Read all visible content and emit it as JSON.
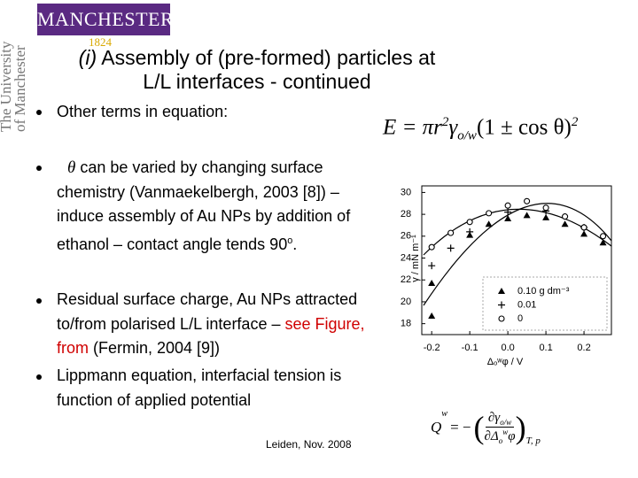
{
  "header": {
    "logo": "MANCHESTER",
    "logo_year": "1824",
    "side": [
      "The University",
      "of Manchester"
    ]
  },
  "title": {
    "part": "(i)",
    "text": "Assembly of (pre-formed) particles at L/L interfaces - continued"
  },
  "bullets": [
    {
      "segments": [
        "Other terms in equation:"
      ]
    },
    {
      "segments": [
        "θ",
        " can be varied by changing surface chemistry (Vanmaekelbergh, 2003 [8]) – induce assembly of Au NPs by addition of ethanol – contact angle tends 90",
        "o",
        "."
      ]
    },
    {
      "segments": [
        "Residual surface charge, Au NPs attracted to/from polarised L/L interface – ",
        "see Figure, from",
        " (Fermin, 2004 [9])"
      ]
    },
    {
      "segments": [
        "Lippmann equation, interfacial tension is function of applied potential"
      ]
    }
  ],
  "equation_energy": {
    "lhs": "E = πr",
    "power": "2",
    "gamma": "γ",
    "gamma_sub": "o/w",
    "bracket": "(1 ± cos θ)",
    "bracket_power": "2"
  },
  "equation_charge": {
    "lhs": "Q",
    "lhs_sup": "w",
    "equals": "= −",
    "numerator": "∂γ",
    "numerator_sub": "o/w",
    "denominator": "∂Δ",
    "denominator_sub": "o",
    "denominator_sup": "w",
    "denominator_var": "φ",
    "outer_sub": "T, p"
  },
  "figure": {
    "type": "scatter",
    "y_label": "γ / mN m⁻¹",
    "x_label": "Δₒʷφ / V",
    "xlim": [
      -0.226,
      0.272
    ],
    "ylim": [
      17,
      30.6
    ],
    "xticks": [
      -0.2,
      -0.1,
      {
        "value": 0,
        "label": "0.0"
      },
      0.1,
      0.2
    ],
    "yticks": [
      18,
      20,
      22,
      24,
      26,
      28,
      30
    ],
    "series": [
      {
        "name": "0.10 g dm⁻³",
        "marker": "triangle",
        "color": "#000000",
        "x": [
          -0.2,
          -0.2,
          -0.1,
          -0.05,
          0,
          0.05,
          0.1,
          0.15,
          0.2,
          0.25
        ],
        "values": [
          18.7,
          21.7,
          26.1,
          27.1,
          27.6,
          27.9,
          27.7,
          27.1,
          26.2,
          25.4
        ]
      },
      {
        "name": "0.01",
        "marker": "plus",
        "color": "#000000",
        "x": [
          -0.2,
          -0.15,
          -0.1,
          0,
          0.1,
          0.2
        ],
        "values": [
          23.3,
          24.9,
          26.4,
          28.2,
          28.3,
          26.8
        ]
      },
      {
        "name": "0",
        "marker": "circle",
        "color": "#000000",
        "x": [
          -0.2,
          -0.15,
          -0.1,
          -0.05,
          0,
          0.05,
          0.1,
          0.15,
          0.2,
          0.25
        ],
        "values": [
          25.0,
          26.3,
          27.3,
          28.1,
          28.8,
          29.2,
          28.6,
          27.8,
          26.8,
          26.0
        ]
      }
    ]
  },
  "footer": "Leiden, Nov. 2008"
}
